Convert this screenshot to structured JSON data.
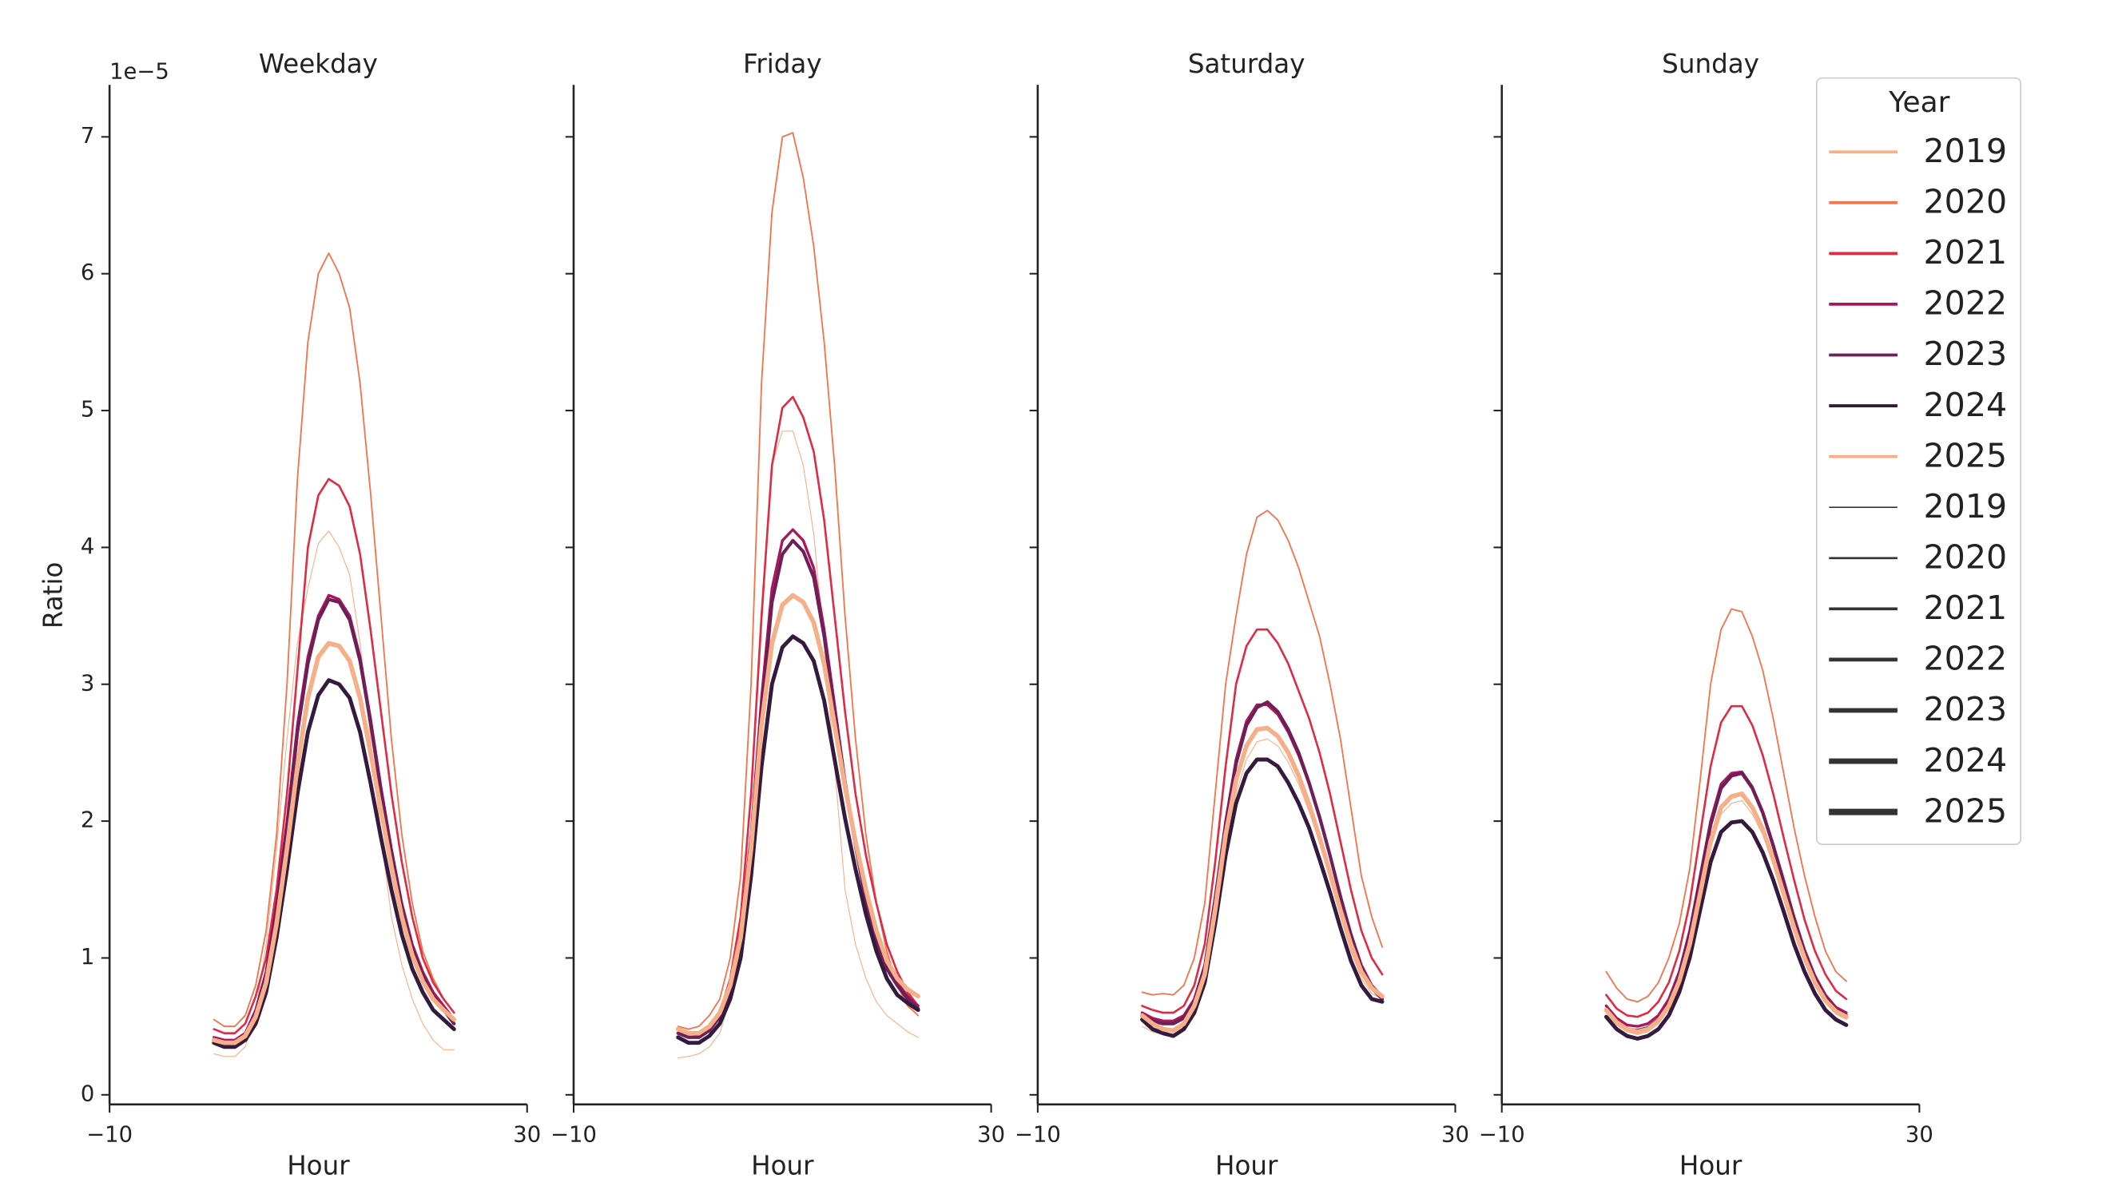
{
  "chart_data": [
    {
      "type": "line",
      "title": "Weekday",
      "xlabel": "Hour",
      "ylabel": "Ratio",
      "y_offset_label": "1e−5",
      "x": [
        0,
        1,
        2,
        3,
        4,
        5,
        6,
        7,
        8,
        9,
        10,
        11,
        12,
        13,
        14,
        15,
        16,
        17,
        18,
        19,
        20,
        21,
        22,
        23
      ],
      "xlim": [
        -10,
        30
      ],
      "xticks": [
        {
          "value": -10,
          "label": "−10"
        },
        30
      ],
      "ylim": [
        -0.07,
        7.38
      ],
      "yticks": [
        0,
        1,
        2,
        3,
        4,
        5,
        6,
        7
      ],
      "series": [
        {
          "values": [
            0.3,
            0.28,
            0.28,
            0.35,
            0.6,
            1.1,
            1.8,
            2.6,
            3.3,
            3.7,
            4.03,
            4.12,
            4.0,
            3.8,
            3.3,
            2.6,
            1.9,
            1.3,
            0.95,
            0.7,
            0.52,
            0.4,
            0.33,
            0.33
          ]
        },
        {
          "values": [
            0.55,
            0.5,
            0.5,
            0.58,
            0.8,
            1.2,
            1.9,
            3.0,
            4.5,
            5.5,
            6.0,
            6.15,
            6.0,
            5.75,
            5.2,
            4.4,
            3.5,
            2.6,
            1.9,
            1.4,
            1.05,
            0.85,
            0.7,
            0.6
          ]
        },
        {
          "values": [
            0.48,
            0.45,
            0.45,
            0.52,
            0.72,
            1.0,
            1.5,
            2.2,
            3.1,
            4.0,
            4.38,
            4.5,
            4.45,
            4.3,
            3.95,
            3.4,
            2.8,
            2.2,
            1.7,
            1.3,
            1.0,
            0.82,
            0.7,
            0.6
          ]
        },
        {
          "values": [
            0.42,
            0.4,
            0.4,
            0.45,
            0.62,
            0.9,
            1.4,
            2.0,
            2.7,
            3.2,
            3.5,
            3.65,
            3.62,
            3.5,
            3.2,
            2.75,
            2.25,
            1.8,
            1.4,
            1.1,
            0.9,
            0.75,
            0.65,
            0.55
          ]
        },
        {
          "values": [
            0.4,
            0.38,
            0.38,
            0.43,
            0.6,
            0.88,
            1.35,
            1.95,
            2.65,
            3.15,
            3.47,
            3.62,
            3.6,
            3.47,
            3.17,
            2.72,
            2.22,
            1.77,
            1.37,
            1.07,
            0.87,
            0.72,
            0.62,
            0.52
          ]
        },
        {
          "values": [
            0.38,
            0.35,
            0.35,
            0.4,
            0.52,
            0.75,
            1.15,
            1.65,
            2.2,
            2.65,
            2.92,
            3.03,
            3.0,
            2.9,
            2.65,
            2.28,
            1.88,
            1.5,
            1.17,
            0.92,
            0.75,
            0.62,
            0.55,
            0.48
          ]
        },
        {
          "values": [
            0.4,
            0.38,
            0.38,
            0.43,
            0.57,
            0.82,
            1.25,
            1.8,
            2.4,
            2.9,
            3.2,
            3.3,
            3.28,
            3.17,
            2.9,
            2.5,
            2.08,
            1.67,
            1.3,
            1.02,
            0.83,
            0.7,
            0.62,
            0.55
          ]
        }
      ]
    },
    {
      "type": "line",
      "title": "Friday",
      "xlabel": "Hour",
      "x": [
        0,
        1,
        2,
        3,
        4,
        5,
        6,
        7,
        8,
        9,
        10,
        11,
        12,
        13,
        14,
        15,
        16,
        17,
        18,
        19,
        20,
        21,
        22,
        23
      ],
      "xlim": [
        -10,
        30
      ],
      "xticks": [
        {
          "value": -10,
          "label": "−10"
        },
        30
      ],
      "series": [
        {
          "values": [
            0.27,
            0.28,
            0.3,
            0.35,
            0.45,
            0.7,
            1.2,
            2.2,
            3.4,
            4.6,
            4.85,
            4.85,
            4.6,
            4.1,
            3.3,
            2.4,
            1.5,
            1.1,
            0.85,
            0.68,
            0.58,
            0.52,
            0.46,
            0.42
          ]
        },
        {
          "values": [
            0.5,
            0.48,
            0.5,
            0.58,
            0.7,
            1.0,
            1.6,
            3.0,
            5.2,
            6.45,
            7.0,
            7.03,
            6.7,
            6.2,
            5.5,
            4.6,
            3.5,
            2.6,
            1.9,
            1.4,
            1.05,
            0.8,
            0.65,
            0.58
          ]
        },
        {
          "values": [
            0.45,
            0.42,
            0.43,
            0.5,
            0.6,
            0.85,
            1.3,
            2.2,
            3.5,
            4.6,
            5.02,
            5.1,
            4.95,
            4.7,
            4.2,
            3.5,
            2.8,
            2.2,
            1.75,
            1.4,
            1.1,
            0.9,
            0.75,
            0.65
          ]
        },
        {
          "values": [
            0.48,
            0.45,
            0.45,
            0.5,
            0.6,
            0.8,
            1.2,
            1.9,
            2.9,
            3.7,
            4.05,
            4.13,
            4.05,
            3.85,
            3.4,
            2.85,
            2.3,
            1.85,
            1.45,
            1.15,
            0.95,
            0.82,
            0.72,
            0.65
          ]
        },
        {
          "values": [
            0.45,
            0.42,
            0.42,
            0.47,
            0.57,
            0.77,
            1.15,
            1.85,
            2.8,
            3.6,
            3.95,
            4.05,
            3.97,
            3.78,
            3.35,
            2.8,
            2.27,
            1.82,
            1.42,
            1.12,
            0.92,
            0.8,
            0.7,
            0.63
          ]
        },
        {
          "values": [
            0.42,
            0.38,
            0.38,
            0.43,
            0.52,
            0.7,
            1.0,
            1.6,
            2.4,
            3.0,
            3.27,
            3.35,
            3.3,
            3.17,
            2.88,
            2.45,
            2.02,
            1.65,
            1.32,
            1.05,
            0.85,
            0.73,
            0.67,
            0.62
          ]
        },
        {
          "values": [
            0.48,
            0.45,
            0.45,
            0.5,
            0.6,
            0.8,
            1.15,
            1.8,
            2.7,
            3.3,
            3.58,
            3.65,
            3.6,
            3.45,
            3.15,
            2.7,
            2.25,
            1.85,
            1.5,
            1.2,
            0.98,
            0.85,
            0.77,
            0.72
          ]
        }
      ]
    },
    {
      "type": "line",
      "title": "Saturday",
      "xlabel": "Hour",
      "x": [
        0,
        1,
        2,
        3,
        4,
        5,
        6,
        7,
        8,
        9,
        10,
        11,
        12,
        13,
        14,
        15,
        16,
        17,
        18,
        19,
        20,
        21,
        22,
        23
      ],
      "xlim": [
        -10,
        30
      ],
      "xticks": [
        {
          "value": -10,
          "label": "−10"
        },
        30
      ],
      "series": [
        {
          "values": [
            0.5,
            0.46,
            0.44,
            0.43,
            0.47,
            0.58,
            0.8,
            1.25,
            1.8,
            2.2,
            2.45,
            2.58,
            2.6,
            2.55,
            2.43,
            2.27,
            2.07,
            1.84,
            1.58,
            1.3,
            1.05,
            0.85,
            0.74,
            0.7
          ]
        },
        {
          "values": [
            0.75,
            0.73,
            0.74,
            0.73,
            0.8,
            1.0,
            1.4,
            2.2,
            3.0,
            3.5,
            3.95,
            4.22,
            4.27,
            4.2,
            4.05,
            3.85,
            3.6,
            3.35,
            3.0,
            2.6,
            2.1,
            1.6,
            1.3,
            1.08
          ]
        },
        {
          "values": [
            0.65,
            0.62,
            0.6,
            0.6,
            0.65,
            0.8,
            1.1,
            1.7,
            2.4,
            3.0,
            3.28,
            3.4,
            3.4,
            3.3,
            3.15,
            2.95,
            2.75,
            2.5,
            2.2,
            1.85,
            1.5,
            1.2,
            1.0,
            0.88
          ]
        },
        {
          "values": [
            0.6,
            0.56,
            0.54,
            0.54,
            0.58,
            0.7,
            0.95,
            1.45,
            2.0,
            2.45,
            2.73,
            2.85,
            2.85,
            2.78,
            2.65,
            2.48,
            2.27,
            2.02,
            1.75,
            1.45,
            1.18,
            0.95,
            0.8,
            0.72
          ]
        },
        {
          "values": [
            0.58,
            0.54,
            0.52,
            0.52,
            0.56,
            0.68,
            0.93,
            1.42,
            1.97,
            2.42,
            2.7,
            2.83,
            2.87,
            2.8,
            2.67,
            2.5,
            2.28,
            2.03,
            1.75,
            1.45,
            1.17,
            0.93,
            0.78,
            0.7
          ]
        },
        {
          "values": [
            0.55,
            0.48,
            0.45,
            0.43,
            0.48,
            0.6,
            0.82,
            1.25,
            1.75,
            2.13,
            2.35,
            2.45,
            2.45,
            2.4,
            2.28,
            2.13,
            1.95,
            1.72,
            1.48,
            1.22,
            0.98,
            0.8,
            0.7,
            0.68
          ]
        },
        {
          "values": [
            0.58,
            0.52,
            0.48,
            0.47,
            0.52,
            0.65,
            0.88,
            1.35,
            1.9,
            2.3,
            2.55,
            2.67,
            2.68,
            2.62,
            2.5,
            2.33,
            2.12,
            1.88,
            1.62,
            1.35,
            1.1,
            0.9,
            0.78,
            0.72
          ]
        }
      ]
    },
    {
      "type": "line",
      "title": "Sunday",
      "xlabel": "Hour",
      "x": [
        0,
        1,
        2,
        3,
        4,
        5,
        6,
        7,
        8,
        9,
        10,
        11,
        12,
        13,
        14,
        15,
        16,
        17,
        18,
        19,
        20,
        21,
        22,
        23
      ],
      "xlim": [
        -10,
        30
      ],
      "xticks": [
        {
          "value": -10,
          "label": "−10"
        },
        30
      ],
      "series": [
        {
          "values": [
            0.6,
            0.51,
            0.46,
            0.44,
            0.46,
            0.52,
            0.63,
            0.8,
            1.07,
            1.43,
            1.8,
            2.05,
            2.13,
            2.15,
            2.05,
            1.9,
            1.68,
            1.44,
            1.2,
            0.98,
            0.8,
            0.67,
            0.59,
            0.55
          ]
        },
        {
          "values": [
            0.9,
            0.78,
            0.7,
            0.68,
            0.72,
            0.82,
            1.0,
            1.25,
            1.65,
            2.3,
            3.0,
            3.4,
            3.55,
            3.53,
            3.35,
            3.1,
            2.75,
            2.35,
            1.95,
            1.6,
            1.3,
            1.05,
            0.9,
            0.83
          ]
        },
        {
          "values": [
            0.73,
            0.63,
            0.58,
            0.57,
            0.6,
            0.68,
            0.82,
            1.05,
            1.4,
            1.9,
            2.4,
            2.72,
            2.84,
            2.84,
            2.7,
            2.48,
            2.2,
            1.88,
            1.57,
            1.28,
            1.05,
            0.88,
            0.76,
            0.7
          ]
        },
        {
          "values": [
            0.65,
            0.56,
            0.51,
            0.5,
            0.52,
            0.58,
            0.7,
            0.9,
            1.2,
            1.6,
            2.0,
            2.27,
            2.35,
            2.36,
            2.25,
            2.07,
            1.83,
            1.57,
            1.3,
            1.06,
            0.87,
            0.73,
            0.64,
            0.6
          ]
        },
        {
          "values": [
            0.62,
            0.53,
            0.48,
            0.47,
            0.49,
            0.55,
            0.67,
            0.87,
            1.17,
            1.57,
            1.97,
            2.24,
            2.33,
            2.35,
            2.24,
            2.06,
            1.82,
            1.55,
            1.28,
            1.04,
            0.85,
            0.71,
            0.62,
            0.58
          ]
        },
        {
          "values": [
            0.57,
            0.48,
            0.43,
            0.41,
            0.43,
            0.48,
            0.58,
            0.75,
            1.0,
            1.35,
            1.7,
            1.92,
            1.99,
            2.0,
            1.92,
            1.77,
            1.57,
            1.34,
            1.1,
            0.9,
            0.74,
            0.62,
            0.55,
            0.51
          ]
        },
        {
          "values": [
            0.62,
            0.53,
            0.48,
            0.46,
            0.48,
            0.54,
            0.65,
            0.83,
            1.1,
            1.47,
            1.85,
            2.1,
            2.18,
            2.2,
            2.1,
            1.94,
            1.72,
            1.47,
            1.22,
            1.0,
            0.82,
            0.69,
            0.61,
            0.57
          ]
        }
      ]
    }
  ],
  "legend": {
    "title": "Year",
    "hue": [
      {
        "name": "2019",
        "color": "#f5b08a"
      },
      {
        "name": "2020",
        "color": "#f07850"
      },
      {
        "name": "2021",
        "color": "#dd2c45"
      },
      {
        "name": "2022",
        "color": "#a8185a"
      },
      {
        "name": "2023",
        "color": "#6e1f57"
      },
      {
        "name": "2024",
        "color": "#341a3e"
      },
      {
        "name": "2025",
        "color": "#f5b08a"
      }
    ],
    "size": [
      {
        "name": "2019",
        "width": 0.6
      },
      {
        "name": "2020",
        "width": 1.0
      },
      {
        "name": "2021",
        "width": 1.4
      },
      {
        "name": "2022",
        "width": 1.8
      },
      {
        "name": "2023",
        "width": 2.2
      },
      {
        "name": "2024",
        "width": 2.6
      },
      {
        "name": "2025",
        "width": 3.0
      }
    ],
    "size_color": "#333333"
  }
}
